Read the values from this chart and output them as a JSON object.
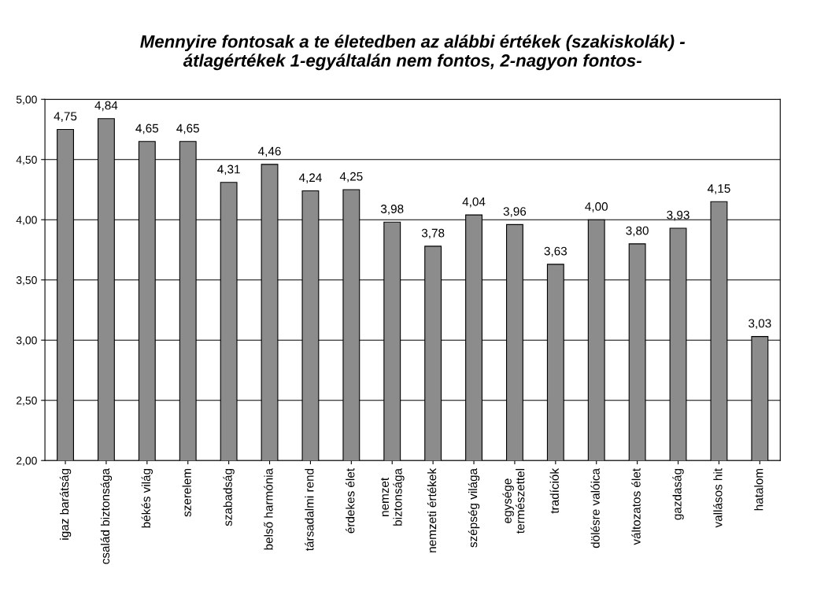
{
  "chart_data": {
    "type": "bar",
    "title": "Mennyire fontosak a te életedben az alábbi értékek (szakiskolák) -\nátlagértékek 1-egyáltalán nem fontos, 2-nagyon fontos-",
    "categories": [
      "igaz barátság",
      "család biztonsága",
      "békés világ",
      "szerelem",
      "szabadság",
      "belső harmónia",
      "társadalmi rend",
      "érdekes élet",
      "nemzet\nbiztonsága",
      "nemzeti értékek",
      "szépség világa",
      "egysége\ntermészettel",
      "tradíciók",
      "dölésre valóica",
      "változatos élet",
      "gazdaság",
      "vallásos hit",
      "hatalom"
    ],
    "values": [
      4.75,
      4.84,
      4.65,
      4.65,
      4.31,
      4.46,
      4.24,
      4.25,
      3.98,
      3.78,
      4.04,
      3.96,
      3.63,
      4.0,
      3.8,
      3.93,
      4.15,
      3.03
    ],
    "value_labels": [
      "4,75",
      "4,84",
      "4,65",
      "4,65",
      "4,31",
      "4,46",
      "4,24",
      "4,25",
      "3,98",
      "3,78",
      "4,04",
      "3,96",
      "3,63",
      "4,00",
      "3,80",
      "3,93",
      "4,15",
      "3,03"
    ],
    "color": "#8c8c8c",
    "ylim": [
      2,
      5
    ],
    "yticks": [
      {
        "value": 2,
        "label": "2,00"
      },
      {
        "value": 2.5,
        "label": "2,50"
      },
      {
        "value": 3,
        "label": "3,00"
      },
      {
        "value": 3.5,
        "label": "3,50"
      },
      {
        "value": 4,
        "label": "4,00"
      },
      {
        "value": 4.5,
        "label": "4,50"
      },
      {
        "value": 5,
        "label": "5,00"
      }
    ],
    "grid": "y",
    "legend": false
  }
}
